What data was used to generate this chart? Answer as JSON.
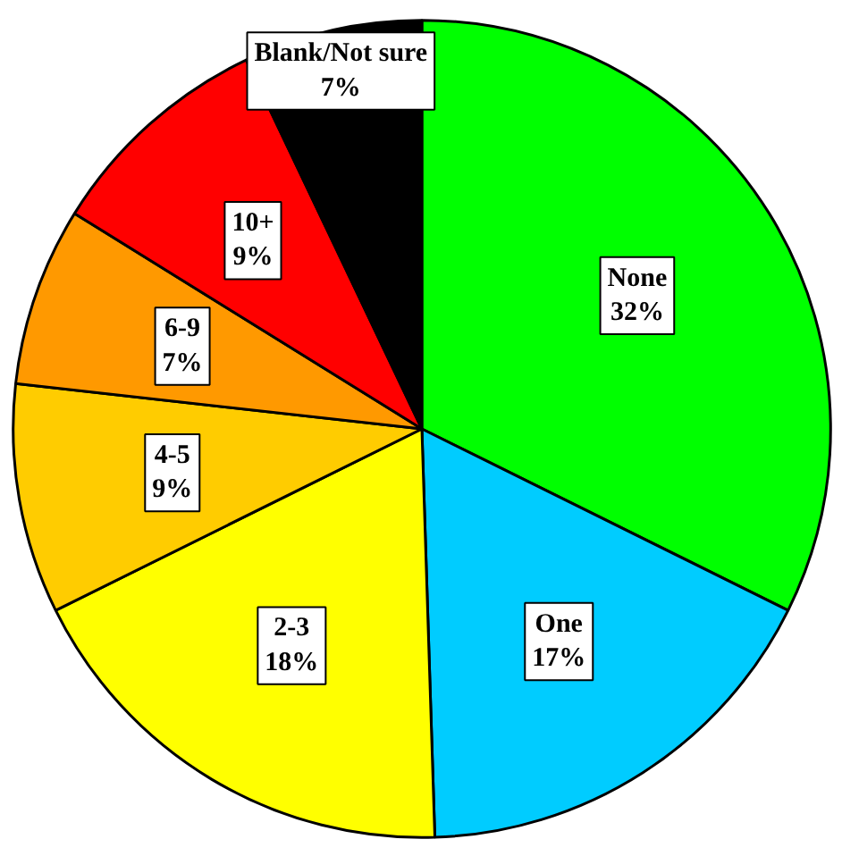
{
  "chart_data": {
    "type": "pie",
    "categories": [
      "None",
      "One",
      "2-3",
      "4-5",
      "6-9",
      "10+",
      "Blank/Not sure"
    ],
    "values": [
      32,
      17,
      18,
      9,
      7,
      9,
      7
    ],
    "value_labels": [
      "32%",
      "17%",
      "18%",
      "9%",
      "7%",
      "9%",
      "7%"
    ],
    "colors": [
      "#00ff00",
      "#00ccff",
      "#ffff00",
      "#ffcc00",
      "#ff9900",
      "#ff0000",
      "#000000"
    ]
  }
}
